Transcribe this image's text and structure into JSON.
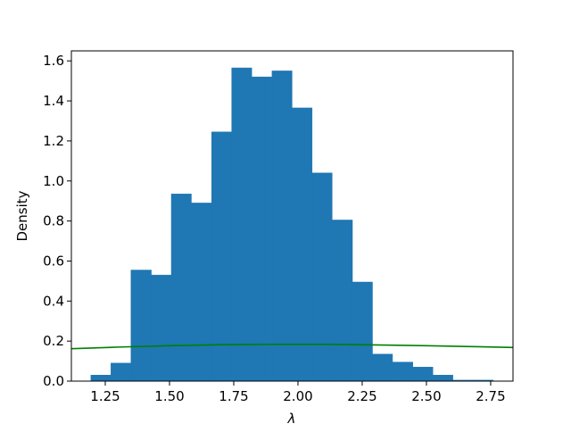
{
  "chart_data": {
    "type": "histogram",
    "xlabel": "λ",
    "ylabel": "Density",
    "bins": [
      1.194,
      1.272,
      1.35,
      1.429,
      1.507,
      1.585,
      1.664,
      1.742,
      1.82,
      1.899,
      1.977,
      2.055,
      2.133,
      2.212,
      2.29,
      2.368,
      2.447,
      2.525,
      2.603,
      2.682,
      2.76
    ],
    "values": [
      0.03,
      0.09,
      0.555,
      0.53,
      0.935,
      0.89,
      1.245,
      1.565,
      1.52,
      1.55,
      1.365,
      1.04,
      0.805,
      0.495,
      0.135,
      0.095,
      0.07,
      0.03,
      0.005,
      0.005
    ],
    "color": "#1f77b4",
    "line": {
      "color": "#008000",
      "x": [
        1.118,
        1.3,
        1.5,
        1.7,
        1.9,
        2.1,
        2.3,
        2.5,
        2.7,
        2.837
      ],
      "values": [
        0.162,
        0.17,
        0.177,
        0.182,
        0.184,
        0.184,
        0.181,
        0.177,
        0.172,
        0.168
      ]
    },
    "xlim": [
      1.118,
      2.837
    ],
    "xticks": [
      1.25,
      {
        "value": 1.5,
        "label": "1.50"
      },
      1.75,
      {
        "value": 2.0,
        "label": "2.00"
      },
      2.25,
      {
        "value": 2.5,
        "label": "2.50"
      },
      2.75
    ],
    "ylim": [
      0,
      1.65
    ],
    "yticks": [
      {
        "value": 0,
        "label": "0.0"
      },
      0.2,
      0.4,
      0.6,
      0.8,
      {
        "value": 1.0,
        "label": "1.0"
      },
      1.2,
      1.4,
      1.6
    ]
  }
}
